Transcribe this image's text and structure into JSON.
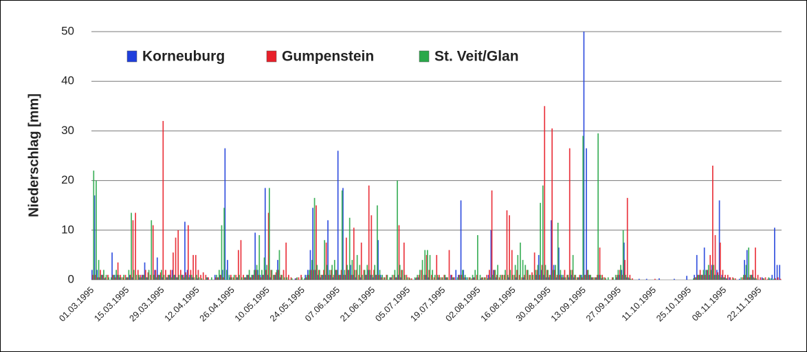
{
  "chart_data": {
    "type": "bar",
    "y_label": "Niederschlag [mm]",
    "ylim": [
      0,
      50
    ],
    "yticks": [
      0,
      10,
      20,
      30,
      40,
      50
    ],
    "grid": true,
    "legend": "top",
    "categories": [
      "01.03.1995",
      null,
      null,
      null,
      null,
      null,
      null,
      null,
      null,
      null,
      null,
      null,
      null,
      null,
      "15.03.1995",
      null,
      null,
      null,
      null,
      null,
      null,
      null,
      null,
      null,
      null,
      null,
      null,
      null,
      "29.03.1995",
      null,
      null,
      null,
      null,
      null,
      null,
      null,
      null,
      null,
      null,
      null,
      null,
      null,
      "12.04.1995",
      null,
      null,
      null,
      null,
      null,
      null,
      null,
      null,
      null,
      null,
      null,
      null,
      null,
      "26.04.1995",
      null,
      null,
      null,
      null,
      null,
      null,
      null,
      null,
      null,
      null,
      null,
      null,
      null,
      "10.05.1995",
      null,
      null,
      null,
      null,
      null,
      null,
      null,
      null,
      null,
      null,
      null,
      null,
      null,
      "24.05.1995",
      null,
      null,
      null,
      null,
      null,
      null,
      null,
      null,
      null,
      null,
      null,
      null,
      null,
      "07.06.1995",
      null,
      null,
      null,
      null,
      null,
      null,
      null,
      null,
      null,
      null,
      null,
      null,
      null,
      "21.06.1995",
      null,
      null,
      null,
      null,
      null,
      null,
      null,
      null,
      null,
      null,
      null,
      null,
      null,
      "05.07.1995",
      null,
      null,
      null,
      null,
      null,
      null,
      null,
      null,
      null,
      null,
      null,
      null,
      null,
      "19.07.1995",
      null,
      null,
      null,
      null,
      null,
      null,
      null,
      null,
      null,
      null,
      null,
      null,
      null,
      "02.08.1995",
      null,
      null,
      null,
      null,
      null,
      null,
      null,
      null,
      null,
      null,
      null,
      null,
      null,
      "16.08.1995",
      null,
      null,
      null,
      null,
      null,
      null,
      null,
      null,
      null,
      null,
      null,
      null,
      null,
      "30.08.1995",
      null,
      null,
      null,
      null,
      null,
      null,
      null,
      null,
      null,
      null,
      null,
      null,
      null,
      "13.09.1995",
      null,
      null,
      null,
      null,
      null,
      null,
      null,
      null,
      null,
      null,
      null,
      null,
      null,
      "27.09.1995",
      null,
      null,
      null,
      null,
      null,
      null,
      null,
      null,
      null,
      null,
      null,
      null,
      null,
      "11.10.1995",
      null,
      null,
      null,
      null,
      null,
      null,
      null,
      null,
      null,
      null,
      null,
      null,
      null,
      "25.10.1995",
      null,
      null,
      null,
      null,
      null,
      null,
      null,
      null,
      null,
      null,
      null,
      null,
      null,
      "08.11.1995",
      null,
      null,
      null,
      null,
      null,
      null,
      null,
      null,
      null,
      null,
      null,
      null,
      null,
      "22.11.1995",
      null,
      null,
      null,
      null,
      null,
      null,
      null,
      null
    ],
    "series": [
      {
        "name": "Korneuburg",
        "color": "#1f3fdc",
        "values": [
          2,
          17,
          2,
          0.5,
          1,
          0.3,
          0,
          0,
          5.5,
          1,
          1,
          0.5,
          0,
          0,
          0.5,
          1,
          0.5,
          0,
          0,
          0.5,
          1,
          3.5,
          0.5,
          0,
          0,
          2,
          4.5,
          1,
          0.5,
          0,
          0.5,
          1,
          2,
          1,
          0.5,
          0,
          1,
          11.7,
          2,
          1,
          0.5,
          0,
          0.3,
          0,
          0,
          0,
          0.5,
          0,
          0,
          1,
          0.5,
          1,
          2,
          26.5,
          4,
          0.5,
          0,
          0,
          0.5,
          0,
          0,
          0.5,
          1,
          0.5,
          1,
          9.5,
          2,
          1,
          1,
          18.5,
          1,
          0.5,
          0,
          1,
          4,
          0.5,
          0,
          0,
          0,
          0,
          0,
          0.3,
          0,
          0,
          0,
          1,
          2,
          6,
          14.5,
          2,
          1,
          0.5,
          1,
          1,
          12,
          1,
          0.5,
          2,
          26,
          1,
          18.5,
          1,
          2,
          3,
          1,
          0.5,
          0,
          0.5,
          0,
          1,
          2,
          1,
          0.5,
          1,
          8,
          1,
          0,
          0,
          0,
          0.5,
          0,
          0.5,
          1,
          0.5,
          0,
          0,
          0,
          0,
          0,
          0.3,
          0.5,
          0,
          0,
          1,
          0.5,
          0,
          0,
          0,
          0.5,
          0,
          0,
          0.5,
          0,
          1,
          0.5,
          2,
          1,
          16,
          2,
          0.5,
          0,
          0,
          0.5,
          0,
          0,
          0.3,
          0,
          0,
          1,
          10,
          2,
          0.5,
          0,
          0,
          0,
          0,
          0.5,
          0,
          0,
          0.5,
          0,
          0,
          0.5,
          0,
          0,
          0,
          0,
          1,
          5,
          2,
          1,
          0.5,
          0.5,
          12,
          3,
          0.5,
          6.5,
          1,
          0.5,
          0,
          0.5,
          1,
          0.5,
          0,
          0.5,
          1,
          50,
          26.5,
          1,
          0.5,
          0,
          0.5,
          1,
          0.3,
          0,
          0,
          0,
          0,
          0,
          0.5,
          1,
          2,
          7.5,
          0.5,
          0.3,
          0,
          0,
          0,
          0.2,
          0,
          0,
          0.2,
          0,
          0,
          0,
          0,
          0.3,
          0,
          0,
          0,
          0,
          0,
          0.2,
          0,
          0,
          0,
          0,
          0.8,
          0,
          0,
          1,
          5,
          1,
          1,
          6.5,
          2,
          1,
          3,
          1,
          2,
          16,
          1,
          0.5,
          0.3,
          0.5,
          0,
          0,
          0,
          0.2,
          0,
          4,
          6,
          0.5,
          1,
          0.3,
          0,
          0,
          0.5,
          0,
          0,
          0.3,
          1,
          10.5,
          3,
          3
        ]
      },
      {
        "name": "Gumpenstein",
        "color": "#e8202a",
        "values": [
          1,
          1,
          0.5,
          2,
          1,
          0.5,
          1,
          0,
          1,
          0.5,
          3.5,
          1,
          0.5,
          1,
          0.5,
          1,
          12,
          13.5,
          2,
          1,
          1,
          2,
          1.5,
          1,
          11,
          2,
          1,
          1.5,
          32,
          2,
          1,
          2,
          5.5,
          8.5,
          10,
          2,
          1,
          1.5,
          11,
          2,
          5,
          5,
          2,
          1,
          1.5,
          1,
          0.5,
          0,
          0,
          0.5,
          0.5,
          1,
          0.5,
          0,
          0,
          1,
          0.5,
          1,
          6,
          8,
          1,
          0.5,
          1,
          0.5,
          1,
          2,
          1,
          0.5,
          1,
          2,
          13.5,
          2,
          1,
          1.5,
          2,
          1,
          2,
          7.5,
          1,
          0.5,
          0,
          0.3,
          0.5,
          1,
          0,
          0.5,
          1,
          2,
          2,
          15,
          2,
          1,
          2,
          7.5,
          1,
          2,
          1,
          2,
          1,
          2,
          1,
          8.5,
          2,
          1,
          10.5,
          2,
          1,
          7.5,
          2,
          1,
          19,
          13,
          2,
          1,
          1,
          0.5,
          0.5,
          1,
          0,
          0.5,
          1,
          0.5,
          11,
          2,
          7.5,
          1,
          0.5,
          0.3,
          0,
          0.5,
          1,
          2,
          1,
          5,
          2,
          1,
          0.5,
          5,
          1,
          0.5,
          1,
          0.5,
          6,
          1,
          0.5,
          0,
          1,
          1,
          0.5,
          0,
          0.5,
          0.3,
          0.5,
          1,
          0,
          0.5,
          0.5,
          1,
          2,
          18,
          2,
          1,
          0.5,
          1,
          1,
          14,
          13,
          6,
          1,
          2,
          1,
          0.5,
          1,
          2,
          1,
          1.5,
          5.5,
          2,
          1,
          3,
          35,
          2,
          1,
          30.5,
          2,
          1,
          1,
          0.5,
          2,
          1,
          26.5,
          2,
          1,
          0.5,
          1,
          0.5,
          1,
          2,
          1,
          0.5,
          0.5,
          1,
          6.5,
          1,
          0.5,
          0,
          0,
          0.5,
          0,
          1,
          2,
          1,
          4,
          16.5,
          1,
          0.3,
          0,
          0,
          0,
          0,
          0,
          0,
          0,
          0,
          0.2,
          0,
          0,
          0,
          0,
          0,
          0,
          0,
          0,
          0,
          0,
          0,
          0,
          0,
          0,
          0,
          0.5,
          1,
          2,
          1,
          1,
          2,
          5,
          23,
          9,
          1.5,
          7.5,
          2,
          1,
          1,
          0.5,
          0.5,
          0.3,
          0,
          0,
          0.5,
          1,
          0.5,
          1,
          2,
          6.5,
          1,
          0.5,
          0.3,
          0.5,
          0.2,
          0,
          0,
          0.3,
          0.5,
          0.2
        ]
      },
      {
        "name": "St. Veit/Glan",
        "color": "#2aa84a",
        "values": [
          22,
          20,
          4,
          1,
          2,
          1,
          0.5,
          0.5,
          1,
          2,
          1,
          0.5,
          1,
          0.5,
          2,
          13.5,
          2,
          1,
          1,
          0.5,
          1,
          0.5,
          2,
          12,
          1,
          0.5,
          1,
          2,
          1,
          0.5,
          1,
          0.5,
          1,
          0.5,
          1,
          1,
          0.5,
          1,
          0.5,
          1,
          0.5,
          1,
          0.5,
          0.3,
          0,
          0.5,
          0,
          0.5,
          0,
          1,
          2,
          11,
          14.5,
          2,
          1,
          0.5,
          1,
          0.5,
          1,
          0.5,
          0.5,
          1,
          2,
          1,
          2,
          3,
          9,
          2,
          4.5,
          3,
          18.5,
          2,
          1,
          2,
          6,
          1,
          0.5,
          0.5,
          0,
          0.3,
          0,
          0.5,
          0,
          0.5,
          0.3,
          1,
          2,
          4,
          16.5,
          3,
          2,
          1,
          8,
          3,
          2,
          3,
          4,
          2,
          1,
          18,
          2,
          3,
          12.5,
          4,
          2,
          5,
          3,
          1,
          2,
          3,
          2,
          1,
          3,
          15,
          2,
          1,
          0.5,
          1,
          0.5,
          1,
          2,
          20,
          3,
          2,
          1,
          0.5,
          0.3,
          0,
          0.5,
          1,
          2,
          4,
          6,
          6,
          5,
          2,
          1,
          1,
          0.5,
          0.5,
          1,
          0.5,
          0,
          0.5,
          0,
          0.5,
          1,
          2,
          1,
          0.5,
          0.5,
          1,
          2,
          9,
          1,
          0.5,
          0.5,
          0.3,
          0.5,
          1,
          2,
          3,
          1,
          1,
          2,
          1,
          2,
          1,
          3,
          5,
          7.5,
          4,
          3,
          2,
          1,
          1,
          2,
          3,
          15.5,
          19,
          3,
          2,
          1,
          2,
          3,
          11.5,
          2,
          1,
          0.5,
          1,
          2,
          5,
          1,
          0.5,
          1,
          29,
          1,
          2,
          1,
          0.5,
          0.5,
          29.5,
          1,
          0.5,
          0.3,
          0.5,
          0,
          0.5,
          1,
          2,
          3,
          10,
          1,
          0.5,
          0.2,
          0,
          0,
          0,
          0,
          0,
          0,
          0,
          0,
          0,
          0,
          0,
          0,
          0,
          0,
          0,
          0,
          0,
          0,
          0,
          0,
          0,
          0,
          0,
          0,
          0.3,
          0.5,
          1,
          1,
          2,
          2,
          3,
          2,
          3,
          1,
          1,
          0.5,
          0.5,
          0.3,
          0,
          0,
          0.3,
          0,
          0,
          0.5,
          1,
          3,
          6.5,
          1,
          0.5,
          0.3,
          0,
          0,
          0.3,
          0,
          0.5,
          0.3,
          0.2,
          0,
          0,
          0
        ]
      }
    ]
  }
}
